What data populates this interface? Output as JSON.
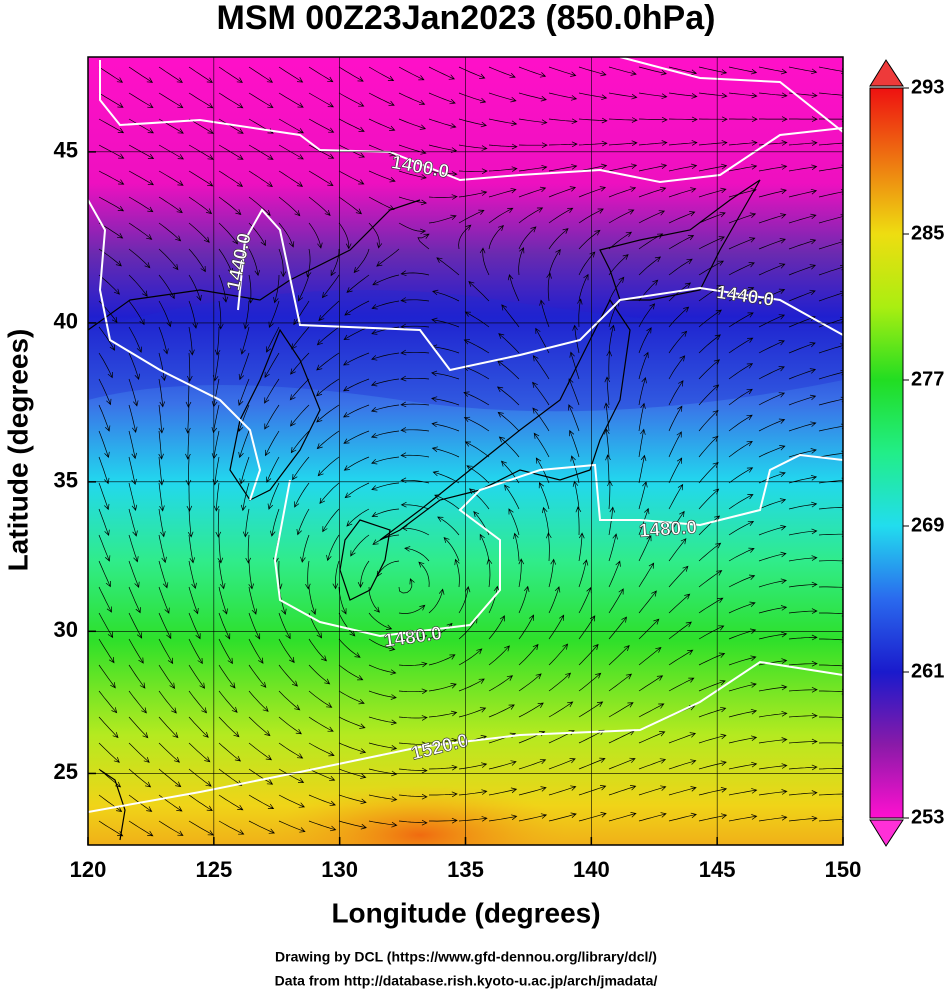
{
  "chart_data": {
    "type": "map",
    "title": "MSM 00Z23Jan2023 (850.0hPa)",
    "x_label": "Longitude (degrees)",
    "y_label": "Latitude  (degrees)",
    "xlim": [
      120,
      150
    ],
    "ylim": [
      22.4,
      47.6
    ],
    "xticks": [
      120,
      125,
      130,
      135,
      140,
      145,
      150
    ],
    "yticks": [
      25,
      30,
      35,
      40,
      45
    ],
    "projection": "mercator",
    "grid": true,
    "colorbar": {
      "lim": [
        253,
        293
      ],
      "ticks": [
        253,
        261,
        269,
        277,
        285,
        293
      ]
    },
    "contour_labels": [
      "1400.0",
      "1440.0",
      "1440.0",
      "1480.0",
      "1480.0",
      "1520.0"
    ]
  },
  "footer": [
    "Drawing by DCL (https://www.gfd-dennou.org/library/dcl/)",
    "Data from http://database.rish.kyoto-u.ac.jp/arch/jmadata/"
  ]
}
